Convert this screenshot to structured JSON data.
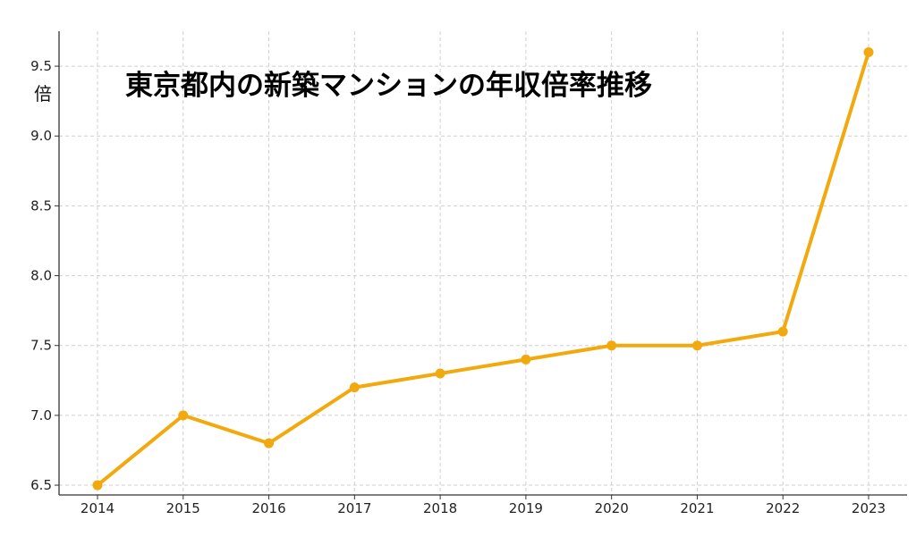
{
  "chart_data": {
    "type": "line",
    "title": "東京都内の新築マンションの年収倍率推移",
    "ylabel": "倍",
    "xlabel": "",
    "x": [
      "2014",
      "2015",
      "2016",
      "2017",
      "2018",
      "2019",
      "2020",
      "2021",
      "2022",
      "2023"
    ],
    "series": [
      {
        "values": [
          6.5,
          7.0,
          6.8,
          7.2,
          7.3,
          7.4,
          7.5,
          7.5,
          7.6,
          9.6
        ]
      }
    ],
    "yticks": [
      "6.5",
      "7.0",
      "7.5",
      "8.0",
      "8.5",
      "9.0",
      "9.5"
    ],
    "ylim": [
      6.43,
      9.75
    ],
    "grid": true,
    "color": "#F2A90E"
  }
}
